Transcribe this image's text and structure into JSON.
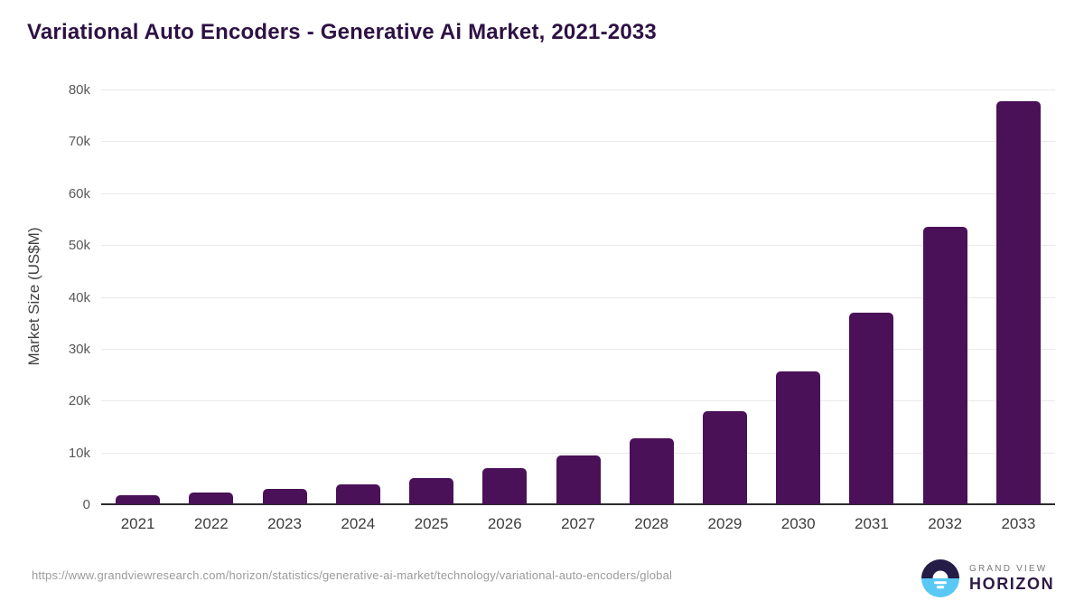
{
  "chart_data": {
    "type": "bar",
    "title": "Variational Auto Encoders - Generative Ai Market, 2021-2033",
    "ylabel": "Market Size (US$M)",
    "xlabel": "",
    "ylim": [
      0,
      80000
    ],
    "grid": "horizontal",
    "legend": "none",
    "categories": [
      "2021",
      "2022",
      "2023",
      "2024",
      "2025",
      "2026",
      "2027",
      "2028",
      "2029",
      "2030",
      "2031",
      "2032",
      "2033"
    ],
    "values": [
      1800,
      2300,
      3000,
      3800,
      5000,
      6900,
      9400,
      12800,
      18000,
      25700,
      37000,
      53500,
      77800
    ],
    "yticks": [
      {
        "label": "0",
        "value": 0
      },
      {
        "label": "10k",
        "value": 10000
      },
      {
        "label": "20k",
        "value": 20000
      },
      {
        "label": "30k",
        "value": 30000
      },
      {
        "label": "40k",
        "value": 40000
      },
      {
        "label": "50k",
        "value": 50000
      },
      {
        "label": "60k",
        "value": 60000
      },
      {
        "label": "70k",
        "value": 70000
      },
      {
        "label": "80k",
        "value": 80000
      }
    ],
    "colors": {
      "bar": "#4a1158",
      "title_text": "#2e1144",
      "gridline": "#e9e9e9",
      "axis_line": "#2b2b2b",
      "tick_text": "#58595b",
      "x_tick_text": "#3d3d3d"
    }
  },
  "footer": {
    "source_url": "https://www.grandviewresearch.com/horizon/statistics/generative-ai-market/technology/variational-auto-encoders/global"
  },
  "brand": {
    "name_top": "GRAND VIEW",
    "name_bottom": "HORIZON",
    "icon": "horizon-sunrise-icon",
    "icon_navy": "#251d47",
    "icon_blue": "#5ac8f5"
  }
}
